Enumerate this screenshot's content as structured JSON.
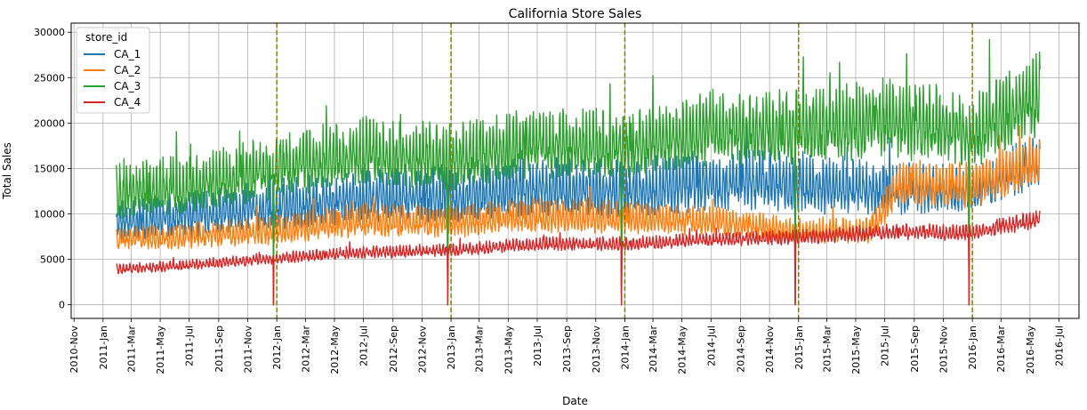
{
  "chart_data": {
    "type": "line",
    "title": "California Store Sales",
    "xlabel": "Date",
    "ylabel": "Total Sales",
    "x_range": [
      "2010-10-26",
      "2016-08-12"
    ],
    "ylim": [
      -1500,
      31000
    ],
    "y_ticks": [
      0,
      5000,
      10000,
      15000,
      20000,
      25000,
      30000
    ],
    "y_tick_labels": [
      "0",
      "5000",
      "10000",
      "15000",
      "20000",
      "25000",
      "30000"
    ],
    "x_ticks": [
      "2010-11-01",
      "2011-01-01",
      "2011-03-01",
      "2011-05-01",
      "2011-07-01",
      "2011-09-01",
      "2011-11-01",
      "2012-01-01",
      "2012-03-01",
      "2012-05-01",
      "2012-07-01",
      "2012-09-01",
      "2012-11-01",
      "2013-01-01",
      "2013-03-01",
      "2013-05-01",
      "2013-07-01",
      "2013-09-01",
      "2013-11-01",
      "2014-01-01",
      "2014-03-01",
      "2014-05-01",
      "2014-07-01",
      "2014-09-01",
      "2014-11-01",
      "2015-01-01",
      "2015-03-01",
      "2015-05-01",
      "2015-07-01",
      "2015-09-01",
      "2015-11-01",
      "2016-01-01",
      "2016-03-01",
      "2016-05-01",
      "2016-07-01"
    ],
    "x_tick_labels": [
      "2010-Nov",
      "2011-Jan",
      "2011-Mar",
      "2011-May",
      "2011-Jul",
      "2011-Sep",
      "2011-Nov",
      "2012-Jan",
      "2012-Mar",
      "2012-May",
      "2012-Jul",
      "2012-Sep",
      "2012-Nov",
      "2013-Jan",
      "2013-Mar",
      "2013-May",
      "2013-Jul",
      "2013-Sep",
      "2013-Nov",
      "2014-Jan",
      "2014-Mar",
      "2014-May",
      "2014-Jul",
      "2014-Sep",
      "2014-Nov",
      "2015-Jan",
      "2015-Mar",
      "2015-May",
      "2015-Jul",
      "2015-Sep",
      "2015-Nov",
      "2016-Jan",
      "2016-Mar",
      "2016-May",
      "2016-Jul"
    ],
    "grid": true,
    "legend": {
      "title": "store_id",
      "placement": "upper-left"
    },
    "vertical_markers": {
      "style": "dashed",
      "color": "#808000",
      "dates": [
        "2012-01-01",
        "2013-01-01",
        "2014-01-01",
        "2015-01-01",
        "2016-01-01"
      ]
    },
    "x_start": "2011-01-29",
    "x_end": "2016-05-22",
    "series": [
      {
        "name": "CA_1",
        "color": "#1f77b4",
        "x": [
          "2011-02-01",
          "2011-07-01",
          "2012-01-01",
          "2012-07-01",
          "2013-01-01",
          "2013-07-01",
          "2014-01-01",
          "2014-07-01",
          "2015-01-01",
          "2015-07-01",
          "2016-01-01",
          "2016-05-22"
        ],
        "baseline": [
          8500,
          9200,
          10200,
          11200,
          11200,
          12100,
          11800,
          12800,
          12500,
          12000,
          12000,
          15000
        ],
        "amplitude": [
          2100,
          2300,
          2500,
          2800,
          2700,
          3000,
          2900,
          3000,
          3100,
          2600,
          2500,
          2700
        ],
        "christmas_zero": true
      },
      {
        "name": "CA_2",
        "color": "#ff7f0e",
        "x": [
          "2011-02-01",
          "2011-07-01",
          "2012-01-01",
          "2012-07-01",
          "2013-01-01",
          "2013-07-01",
          "2014-01-01",
          "2014-07-01",
          "2015-01-01",
          "2015-06-01",
          "2015-08-01",
          "2016-01-01",
          "2016-05-22"
        ],
        "baseline": [
          7000,
          7200,
          7800,
          8800,
          8600,
          9300,
          9100,
          8900,
          7800,
          7800,
          12800,
          12500,
          15200
        ],
        "amplitude": [
          1200,
          1300,
          1500,
          1700,
          1600,
          1800,
          1700,
          1500,
          1300,
          1300,
          2400,
          2300,
          2600
        ],
        "christmas_zero": true
      },
      {
        "name": "CA_3",
        "color": "#2ca02c",
        "x": [
          "2011-02-01",
          "2011-07-01",
          "2012-01-01",
          "2012-07-01",
          "2013-01-01",
          "2013-07-01",
          "2014-01-01",
          "2014-07-01",
          "2015-01-01",
          "2015-07-01",
          "2016-01-01",
          "2016-05-22"
        ],
        "baseline": [
          11500,
          12300,
          14300,
          15700,
          15200,
          16900,
          16400,
          18400,
          18300,
          19500,
          18000,
          22000
        ],
        "amplitude": [
          2900,
          3000,
          3300,
          3500,
          3400,
          3600,
          3500,
          3800,
          3900,
          4000,
          3800,
          4200
        ],
        "christmas_zero": true
      },
      {
        "name": "CA_4",
        "color": "#d62728",
        "x": [
          "2011-02-01",
          "2011-07-01",
          "2012-01-01",
          "2012-07-01",
          "2013-01-01",
          "2013-07-01",
          "2014-01-01",
          "2014-07-01",
          "2015-01-01",
          "2015-07-01",
          "2016-01-01",
          "2016-05-22"
        ],
        "baseline": [
          3800,
          4200,
          5000,
          5600,
          5800,
          6500,
          6500,
          7000,
          7200,
          7800,
          7700,
          9200
        ],
        "amplitude": [
          500,
          550,
          600,
          650,
          650,
          700,
          700,
          700,
          750,
          800,
          800,
          900
        ],
        "christmas_zero": true
      }
    ]
  }
}
